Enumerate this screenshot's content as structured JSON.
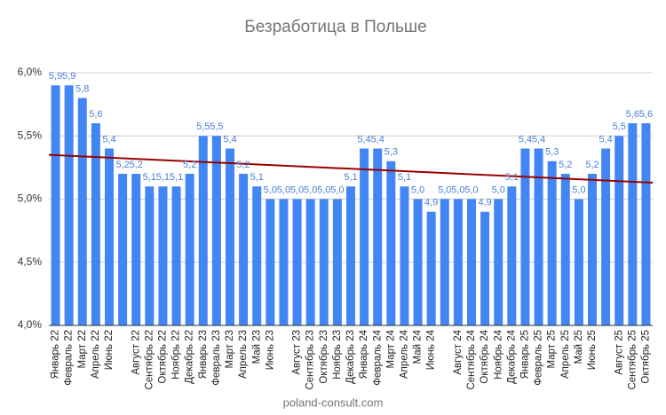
{
  "chart_data": {
    "type": "bar",
    "title": "Безработица в Польше",
    "footer": "poland-consult.com",
    "categories": [
      "Январь 22",
      "Февраль 22",
      "Март 22",
      "Апрель 22",
      "Июнь 22",
      null,
      "Август 22",
      "Сентябрь 22",
      "Октябрь 22",
      "Ноябрь 22",
      "Декабрь 22",
      "Январь 23",
      "Февраль 23",
      "Март 23",
      "Апрель 23",
      "Май 23",
      "Июнь 23",
      null,
      "Август 23",
      "Сентябрь 23",
      "Октябрь 23",
      "Ноябрь 23",
      "Декабрь 23",
      "Январь 24",
      "Февраль 24",
      "Март 24",
      "Апрель 24",
      "Май 24",
      "Июнь 24",
      null,
      "Август 24",
      "Сентябрь 24",
      "Октябрь 24",
      "Ноябрь 24",
      "Декабрь 24",
      "Январь 25",
      "Февраль 25",
      "Март 25",
      "Апрель 25",
      "Май 25",
      "Июнь 25",
      null,
      "Август 25",
      "Сентябрь 25",
      "Октябрь 25"
    ],
    "values": [
      5.9,
      5.9,
      5.8,
      5.6,
      5.4,
      5.2,
      5.2,
      5.1,
      5.1,
      5.1,
      5.2,
      5.5,
      5.5,
      5.4,
      5.2,
      5.1,
      5.0,
      5.0,
      5.0,
      5.0,
      5.0,
      5.0,
      5.1,
      5.4,
      5.4,
      5.3,
      5.1,
      5.0,
      4.9,
      5.0,
      5.0,
      5.0,
      4.9,
      5.0,
      5.1,
      5.4,
      5.4,
      5.3,
      5.2,
      5.0,
      5.2,
      5.4,
      5.5,
      5.6,
      5.6
    ],
    "value_labels": [
      "5,9",
      "5,9",
      "5,8",
      "5,6",
      "5,4",
      "5,2",
      "5,2",
      "5,1",
      "5,1",
      "5,1",
      "5,2",
      "5,5",
      "5,5",
      "5,4",
      "5,2",
      "5,1",
      "5,0",
      "5,0",
      "5,0",
      "5,0",
      "5,0",
      "5,0",
      "5,1",
      "5,4",
      "5,4",
      "5,3",
      "5,1",
      "5,0",
      "4,9",
      "5,0",
      "5,0",
      "5,0",
      "4,9",
      "5,0",
      "5,1",
      "5,4",
      "5,4",
      "5,3",
      "5,2",
      "5,0",
      "5,2",
      "5,4",
      "5,5",
      "5,6",
      "5,6"
    ],
    "color": "#4285f4",
    "label_color": "#4a7fd8",
    "trendline": {
      "color": "#990000",
      "values": [
        5.35,
        5.13
      ]
    },
    "ylim": [
      4,
      6.0
    ],
    "yticks": [
      {
        "value": 4,
        "label": "4,0%"
      },
      {
        "value": 4.5,
        "label": "4,5%"
      },
      {
        "value": 5,
        "label": "5,0%"
      },
      {
        "value": 5.5,
        "label": "5,5%"
      },
      {
        "value": 6,
        "label": "6,0%"
      }
    ],
    "grid": true
  }
}
